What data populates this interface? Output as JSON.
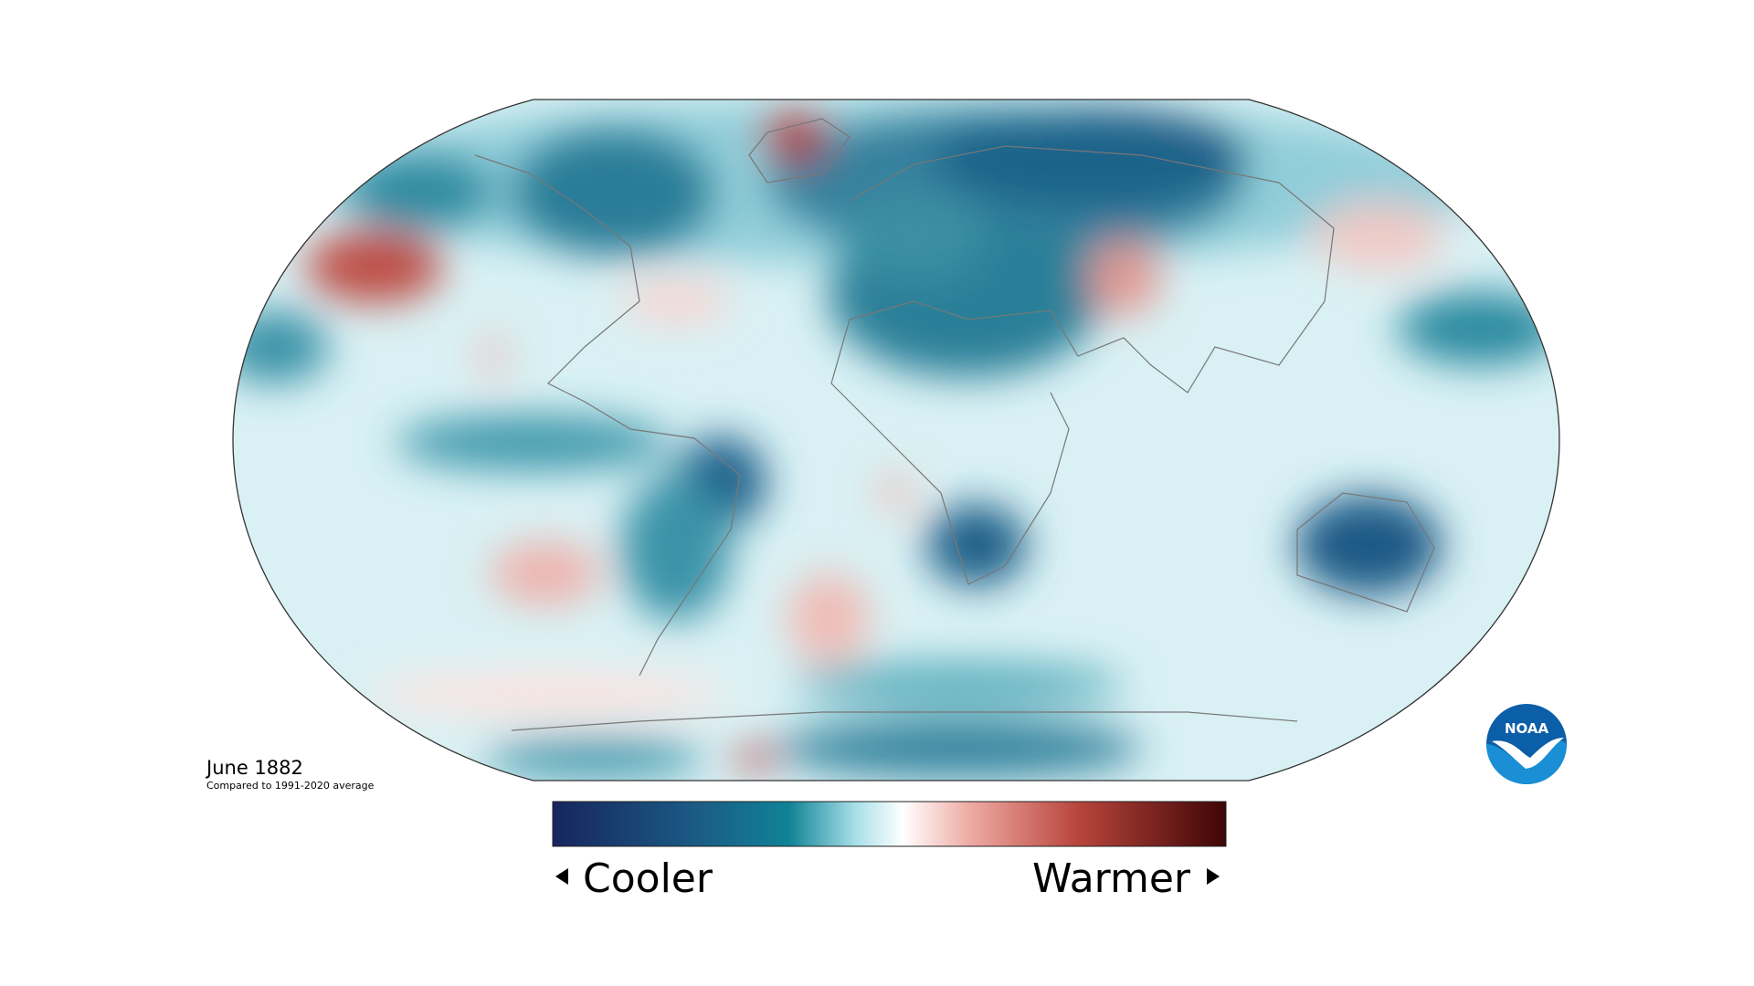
{
  "map": {
    "title": "June 1882",
    "subtitle": "Compared to 1991-2020 average"
  },
  "legend": {
    "low_label": "Cooler",
    "high_label": "Warmer"
  },
  "logo": {
    "text": "NOAA"
  }
}
